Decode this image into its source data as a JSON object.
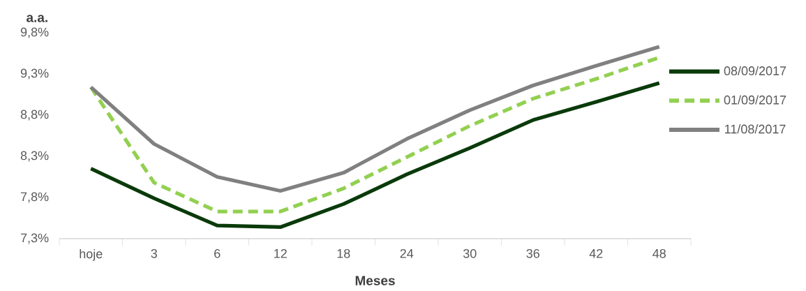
{
  "chart_data": {
    "type": "line",
    "xlabel": "Meses",
    "ylabel": "a.a.",
    "categories": [
      "hoje",
      "3",
      "6",
      "12",
      "18",
      "24",
      "30",
      "36",
      "42",
      "48"
    ],
    "series": [
      {
        "name": "08/09/2017",
        "color": "#0a3a0a",
        "line_style": "solid",
        "values": [
          8.15,
          7.79,
          7.46,
          7.44,
          7.72,
          8.08,
          8.4,
          8.74,
          8.96,
          9.19
        ]
      },
      {
        "name": "01/09/2017",
        "color": "#92d050",
        "line_style": "dashed",
        "values": [
          9.14,
          7.98,
          7.63,
          7.63,
          7.91,
          8.29,
          8.67,
          9.0,
          9.24,
          9.5
        ]
      },
      {
        "name": "11/08/2017",
        "color": "#808080",
        "line_style": "solid",
        "values": [
          9.14,
          8.45,
          8.05,
          7.88,
          8.1,
          8.51,
          8.86,
          9.16,
          9.4,
          9.63
        ]
      }
    ],
    "ylim": [
      7.3,
      9.8
    ],
    "yticks": [
      {
        "value": 7.3,
        "label": "7,3%"
      },
      {
        "value": 7.8,
        "label": "7,8%"
      },
      {
        "value": 8.3,
        "label": "8,3%"
      },
      {
        "value": 8.8,
        "label": "8,8%"
      },
      {
        "value": 9.3,
        "label": "9,3%"
      },
      {
        "value": 9.8,
        "label": "9,8%"
      }
    ],
    "grid": false,
    "legend": "right",
    "marker": "none"
  }
}
